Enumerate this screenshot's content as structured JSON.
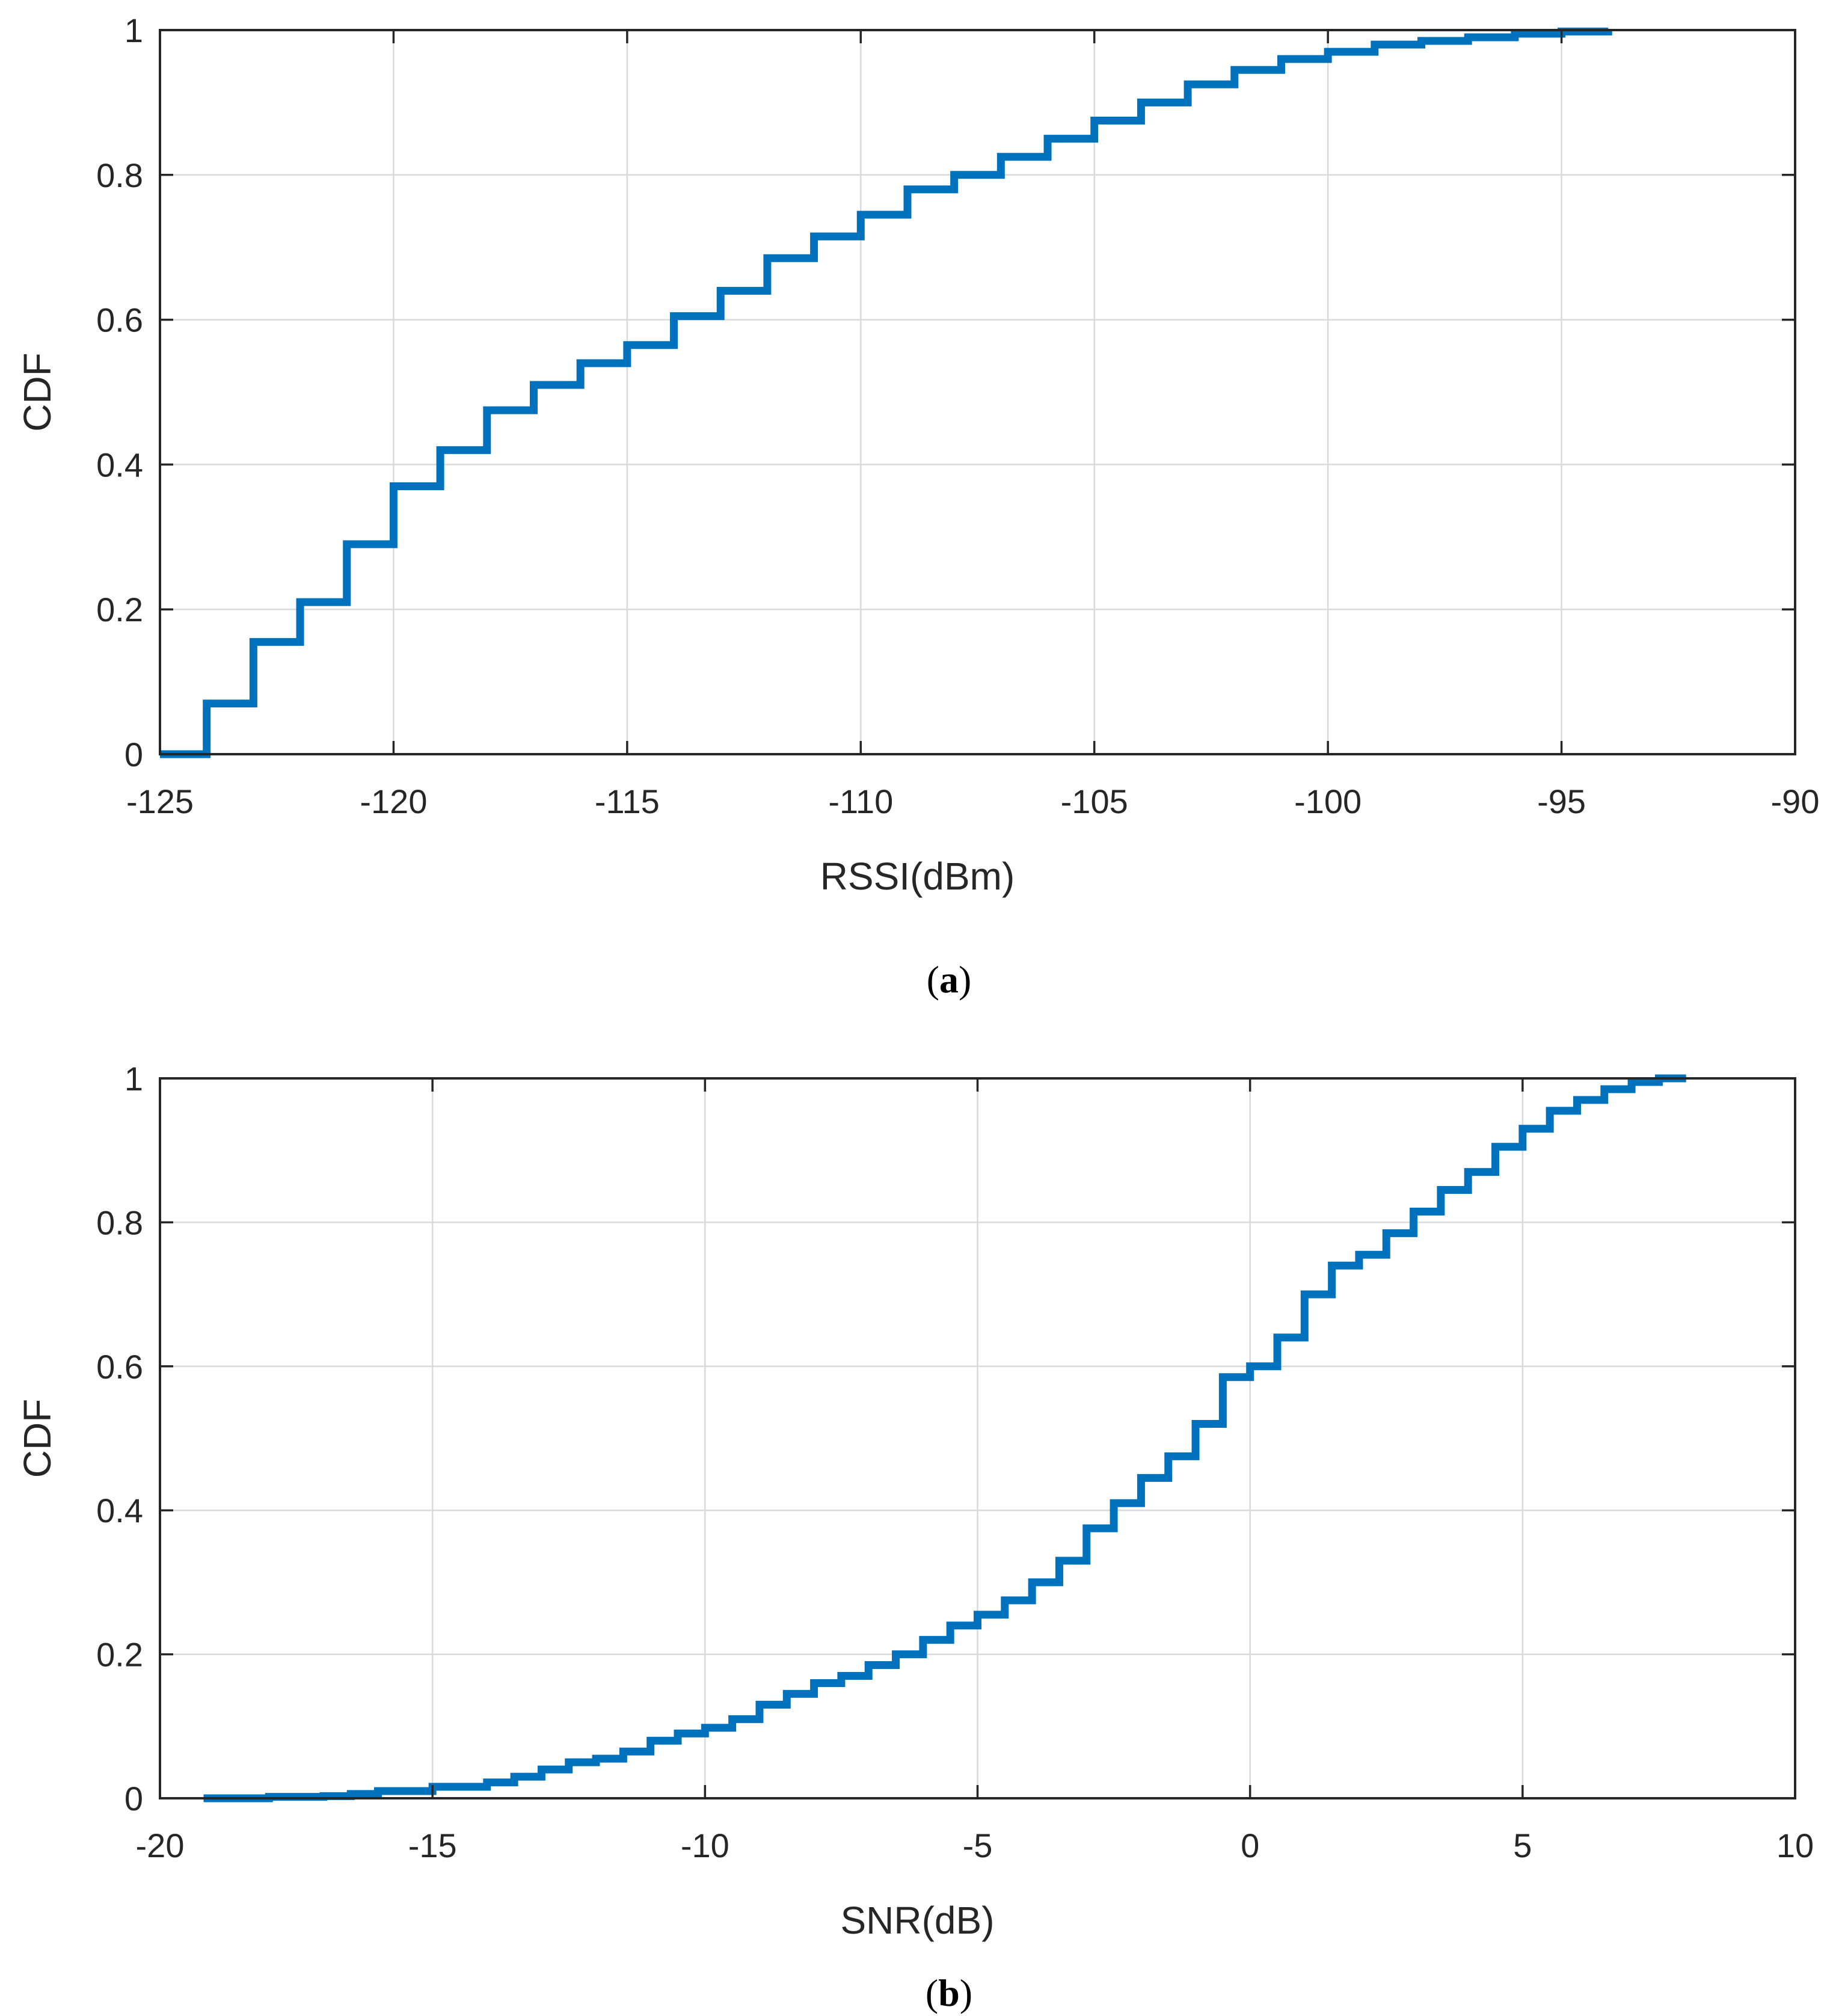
{
  "colors": {
    "series": "#0072BD",
    "axis": "#262626",
    "grid": "#d9d9d9"
  },
  "chart_data": [
    {
      "type": "line",
      "step": true,
      "panel": "a",
      "caption_label": "a",
      "xlabel": "RSSI(dBm)",
      "ylabel": "CDF",
      "xlim": [
        -125,
        -90
      ],
      "ylim": [
        0,
        1
      ],
      "xticks": [
        -125,
        -120,
        -115,
        -110,
        -105,
        -100,
        -95,
        -90
      ],
      "yticks": [
        0,
        0.2,
        0.4,
        0.6,
        0.8,
        1
      ],
      "xtick_labels": [
        "-125",
        "-120",
        "-115",
        "-110",
        "-105",
        "-100",
        "-95",
        "-90"
      ],
      "ytick_labels": [
        "0",
        "0.2",
        "0.4",
        "0.6",
        "0.8",
        "1"
      ],
      "grid": true,
      "series": [
        {
          "x": [
            -125,
            -124,
            -123,
            -122,
            -121,
            -120,
            -119,
            -118,
            -117,
            -116,
            -115,
            -114,
            -113,
            -112,
            -111,
            -110,
            -109,
            -108,
            -107,
            -106,
            -105,
            -104,
            -103,
            -102,
            -101,
            -100,
            -99,
            -98,
            -97,
            -96,
            -95,
            -94
          ],
          "y": [
            0,
            0.07,
            0.155,
            0.21,
            0.29,
            0.37,
            0.42,
            0.475,
            0.51,
            0.54,
            0.565,
            0.605,
            0.64,
            0.685,
            0.715,
            0.745,
            0.78,
            0.8,
            0.825,
            0.85,
            0.875,
            0.9,
            0.925,
            0.945,
            0.96,
            0.97,
            0.98,
            0.985,
            0.99,
            0.995,
            0.998,
            1.0
          ]
        }
      ]
    },
    {
      "type": "line",
      "step": true,
      "panel": "b",
      "caption_label": "b",
      "xlabel": "SNR(dB)",
      "ylabel": "CDF",
      "xlim": [
        -20,
        10
      ],
      "ylim": [
        0,
        1
      ],
      "xticks": [
        -20,
        -15,
        -10,
        -5,
        0,
        5,
        10
      ],
      "yticks": [
        0,
        0.2,
        0.4,
        0.6,
        0.8,
        1
      ],
      "xtick_labels": [
        "-20",
        "-15",
        "-10",
        "-5",
        "0",
        "5",
        "10"
      ],
      "ytick_labels": [
        "0",
        "0.2",
        "0.4",
        "0.6",
        "0.8",
        "1"
      ],
      "grid": true,
      "series": [
        {
          "x": [
            -19.2,
            -18,
            -17,
            -16.5,
            -16,
            -15,
            -14,
            -13.5,
            -13,
            -12.5,
            -12,
            -11.5,
            -11,
            -10.5,
            -10,
            -9.5,
            -9,
            -8.5,
            -8,
            -7.5,
            -7,
            -6.5,
            -6,
            -5.5,
            -5,
            -4.5,
            -4,
            -3.5,
            -3,
            -2.5,
            -2,
            -1.5,
            -1,
            -0.5,
            0,
            0.5,
            1,
            1.5,
            2,
            2.5,
            3,
            3.5,
            4,
            4.5,
            5,
            5.5,
            6,
            6.5,
            7,
            7.5,
            8
          ],
          "y": [
            0,
            0.002,
            0.003,
            0.006,
            0.01,
            0.016,
            0.022,
            0.03,
            0.04,
            0.05,
            0.055,
            0.065,
            0.08,
            0.09,
            0.098,
            0.11,
            0.13,
            0.145,
            0.16,
            0.17,
            0.185,
            0.2,
            0.22,
            0.24,
            0.255,
            0.275,
            0.3,
            0.33,
            0.375,
            0.41,
            0.445,
            0.475,
            0.52,
            0.585,
            0.6,
            0.64,
            0.7,
            0.74,
            0.755,
            0.785,
            0.815,
            0.845,
            0.87,
            0.905,
            0.93,
            0.955,
            0.97,
            0.985,
            0.995,
            1.0,
            1.0
          ]
        }
      ]
    }
  ]
}
